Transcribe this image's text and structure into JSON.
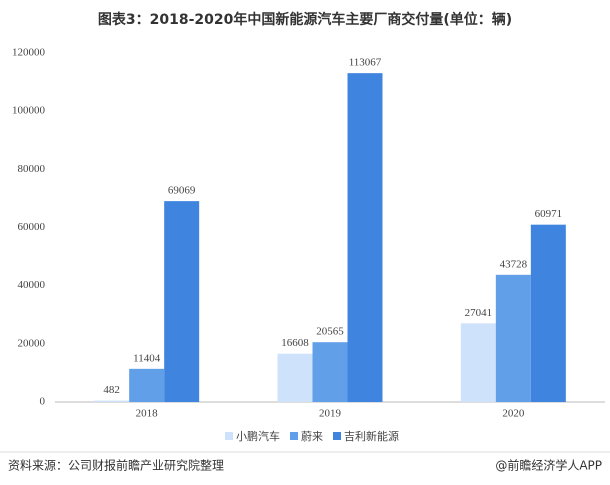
{
  "chart_data": {
    "type": "bar",
    "title": "图表3：2018-2020年中国新能源汽车主要厂商交付量(单位：辆)",
    "categories": [
      "2018",
      "2019",
      "2020"
    ],
    "series": [
      {
        "name": "小鹏汽车",
        "color": "#cfe2fb",
        "values": [
          482,
          16608,
          27041
        ]
      },
      {
        "name": "蔚来",
        "color": "#629fe9",
        "values": [
          11404,
          20565,
          43728
        ]
      },
      {
        "name": "吉利新能源",
        "color": "#3f85e0",
        "values": [
          69069,
          113067,
          60971
        ]
      }
    ],
    "ylim": [
      0,
      120000
    ],
    "yticks": [
      0,
      20000,
      40000,
      60000,
      80000,
      100000,
      120000
    ],
    "grid": false,
    "legend": "bottom",
    "source": "资料来源：公司财报前瞻产业研究院整理",
    "credit": "@前瞻经济学人APP"
  }
}
